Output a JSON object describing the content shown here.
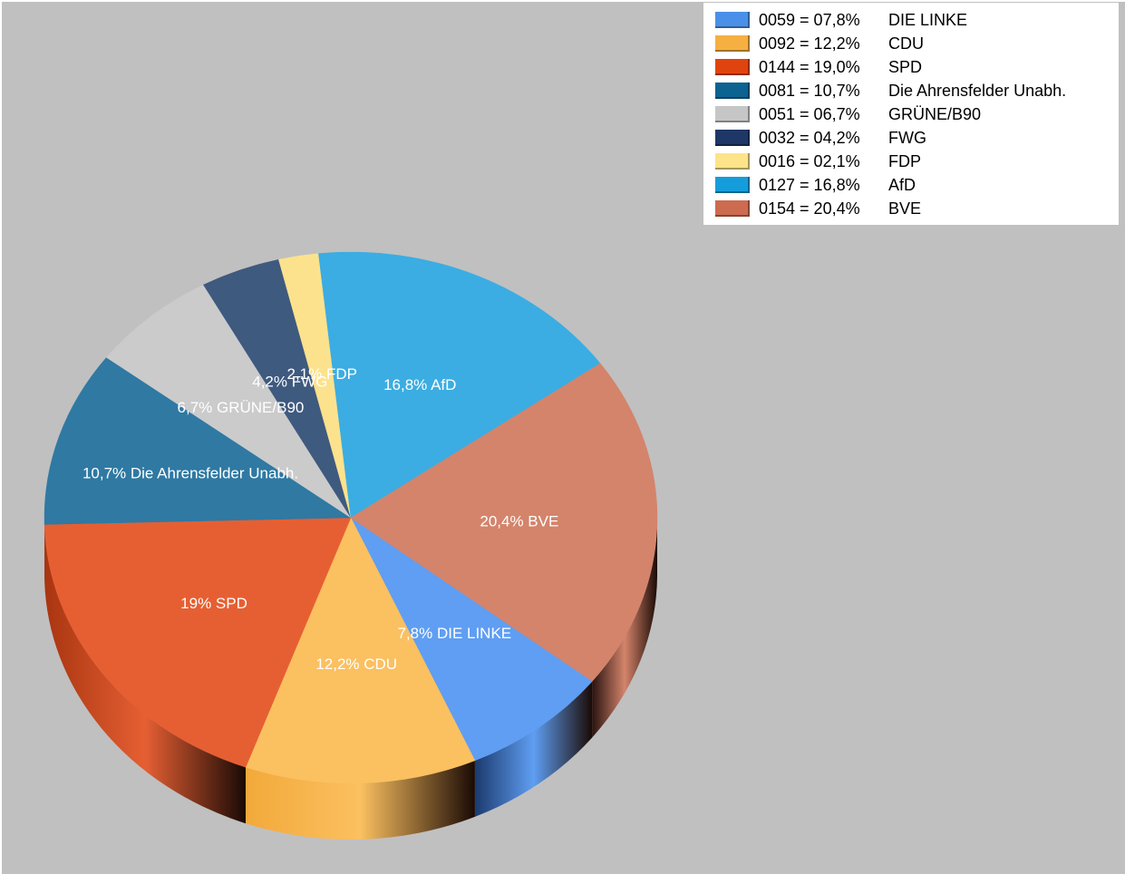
{
  "chart_data": {
    "type": "pie",
    "style": "3d",
    "slices": [
      {
        "label": "DIE LINKE",
        "count": "0059",
        "percent": 7.8,
        "legend_pct": "07,8%",
        "slice_label": "7,8%  DIE LINKE",
        "color": "#5f9ef2",
        "side_color": "#1b3a6e"
      },
      {
        "label": "CDU",
        "count": "0092",
        "percent": 12.2,
        "legend_pct": "12,2%",
        "slice_label": "12,2%  CDU",
        "color": "#fbc060",
        "side_color": "#f2a93a"
      },
      {
        "label": "SPD",
        "count": "0144",
        "percent": 19.0,
        "legend_pct": "19,0%",
        "slice_label": "19%  SPD",
        "color": "#e65f33",
        "side_color": "#a83510"
      },
      {
        "label": "Die Ahrensfelder Unabh.",
        "count": "0081",
        "percent": 10.7,
        "legend_pct": "10,7%",
        "slice_label": "10,7%  Die Ahrensfelder Unabh.",
        "color": "#2f79a3",
        "side_color": "#1a4a66"
      },
      {
        "label": "GRÜNE/B90",
        "count": "0051",
        "percent": 6.7,
        "legend_pct": "06,7%",
        "slice_label": "6,7%  GRÜNE/B90",
        "color": "#cbcbcb",
        "side_color": "#888888"
      },
      {
        "label": "FWG",
        "count": "0032",
        "percent": 4.2,
        "legend_pct": "04,2%",
        "slice_label": "4,2%  FWG",
        "color": "#3f5a7f",
        "side_color": "#1d2f4a"
      },
      {
        "label": "FDP",
        "count": "0016",
        "percent": 2.1,
        "legend_pct": "02,1%",
        "slice_label": "2,1%  FDP",
        "color": "#fde28d",
        "side_color": "#b89b3c"
      },
      {
        "label": "AfD",
        "count": "0127",
        "percent": 16.8,
        "legend_pct": "16,8%",
        "slice_label": "16,8%  AfD",
        "color": "#3badE2",
        "side_color": "#1b6a96"
      },
      {
        "label": "BVE",
        "count": "0154",
        "percent": 20.4,
        "legend_pct": "20,4%",
        "slice_label": "20,4%  BVE",
        "color": "#d4846b",
        "side_color": "#2a1410"
      }
    ]
  },
  "legend": {
    "items": [
      {
        "value": "0059 = 07,8%",
        "name": "DIE LINKE",
        "color": "#4a90e8"
      },
      {
        "value": "0092 = 12,2%",
        "name": "CDU",
        "color": "#f5b041"
      },
      {
        "value": "0144 = 19,0%",
        "name": "SPD",
        "color": "#e0440e"
      },
      {
        "value": "0081 = 10,7%",
        "name": "Die Ahrensfelder Unabh.",
        "color": "#0c6291"
      },
      {
        "value": "0051 = 06,7%",
        "name": "GRÜNE/B90",
        "color": "#c6c6c6"
      },
      {
        "value": "0032 = 04,2%",
        "name": "FWG",
        "color": "#1e3766"
      },
      {
        "value": "0016 = 02,1%",
        "name": "FDP",
        "color": "#fde48a"
      },
      {
        "value": "0127 = 16,8%",
        "name": "AfD",
        "color": "#159ddb"
      },
      {
        "value": "0154 = 20,4%",
        "name": "BVE",
        "color": "#cc6b4f"
      }
    ]
  }
}
